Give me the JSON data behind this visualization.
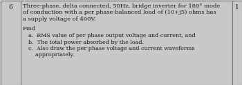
{
  "question_number": "6",
  "right_number": "1",
  "main_text_line1": "Three-phase, delta connected, 50Hz, bridge inverter for 180° mode",
  "main_text_line2": "of conduction with a per phase-balanced load of (10+j5) ohms has",
  "main_text_line3": "a supply voltage of 400V.",
  "find_label": "Find",
  "item_a": "a.  RMS value of per phase output voltage and current, and",
  "item_b": "b.  The total power absorbed by the load.",
  "item_c_line1": "c.  Also draw the per phase voltage and current waveforms",
  "item_c_line2": "    appropriately.",
  "bg_color": "#c8c8c8",
  "text_color": "#1a1a1a",
  "border_color": "#777777",
  "font_size_main": 6.0,
  "font_size_items": 5.8
}
